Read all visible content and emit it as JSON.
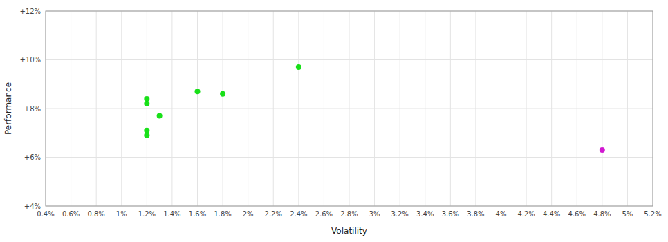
{
  "chart_data": {
    "type": "scatter",
    "x_label": "Volatility",
    "y_label": "Performance",
    "xlim": [
      0.004,
      0.052
    ],
    "ylim": [
      0.04,
      0.12
    ],
    "xticks": [
      {
        "value": 0.004,
        "label": "0.4%"
      },
      {
        "value": 0.006,
        "label": "0.6%"
      },
      {
        "value": 0.008,
        "label": "0.8%"
      },
      {
        "value": 0.01,
        "label": "1%"
      },
      {
        "value": 0.012,
        "label": "1.2%"
      },
      {
        "value": 0.014,
        "label": "1.4%"
      },
      {
        "value": 0.016,
        "label": "1.6%"
      },
      {
        "value": 0.018,
        "label": "1.8%"
      },
      {
        "value": 0.02,
        "label": "2%"
      },
      {
        "value": 0.022,
        "label": "2.2%"
      },
      {
        "value": 0.024,
        "label": "2.4%"
      },
      {
        "value": 0.026,
        "label": "2.6%"
      },
      {
        "value": 0.028,
        "label": "2.8%"
      },
      {
        "value": 0.03,
        "label": "3%"
      },
      {
        "value": 0.032,
        "label": "3.2%"
      },
      {
        "value": 0.034,
        "label": "3.4%"
      },
      {
        "value": 0.036,
        "label": "3.6%"
      },
      {
        "value": 0.038,
        "label": "3.8%"
      },
      {
        "value": 0.04,
        "label": "4%"
      },
      {
        "value": 0.042,
        "label": "4.2%"
      },
      {
        "value": 0.044,
        "label": "4.4%"
      },
      {
        "value": 0.046,
        "label": "4.6%"
      },
      {
        "value": 0.048,
        "label": "4.8%"
      },
      {
        "value": 0.05,
        "label": "5%"
      },
      {
        "value": 0.052,
        "label": "5.2%"
      }
    ],
    "yticks": [
      {
        "value": 0.04,
        "label": "+4%"
      },
      {
        "value": 0.06,
        "label": "+6%"
      },
      {
        "value": 0.08,
        "label": "+8%"
      },
      {
        "value": 0.1,
        "label": "+10%"
      },
      {
        "value": 0.12,
        "label": "+12%"
      }
    ],
    "grid": true,
    "series": [
      {
        "color": "#00dd00",
        "x": [
          0.012,
          0.012,
          0.013,
          0.012,
          0.012,
          0.016,
          0.018,
          0.024
        ],
        "values": [
          0.082,
          0.084,
          0.077,
          0.071,
          0.069,
          0.087,
          0.086,
          0.097
        ]
      },
      {
        "color": "#cc00cc",
        "x": [
          0.048
        ],
        "values": [
          0.063
        ]
      }
    ]
  }
}
